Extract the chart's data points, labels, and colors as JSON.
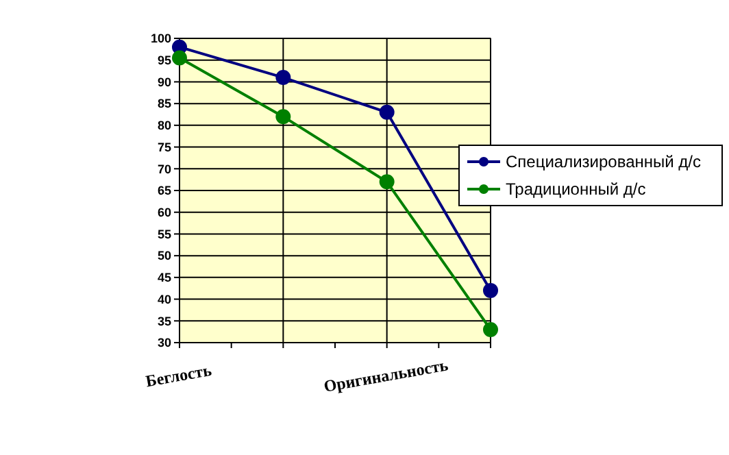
{
  "chart_data": {
    "type": "line",
    "categories": [
      "Беглость",
      null,
      "Оригинальность",
      null
    ],
    "series": [
      {
        "name": "Специализированный д/с",
        "color": "#000080",
        "values": [
          98,
          91,
          83,
          42
        ]
      },
      {
        "name": "Традиционный д/с",
        "color": "#008000",
        "values": [
          95.5,
          82,
          67,
          33
        ]
      }
    ],
    "ylim": [
      30,
      100
    ],
    "yticks": [
      30,
      35,
      40,
      45,
      50,
      55,
      60,
      65,
      70,
      75,
      80,
      85,
      90,
      95,
      100
    ],
    "grid": true,
    "legend": "right",
    "marker": "circle"
  }
}
